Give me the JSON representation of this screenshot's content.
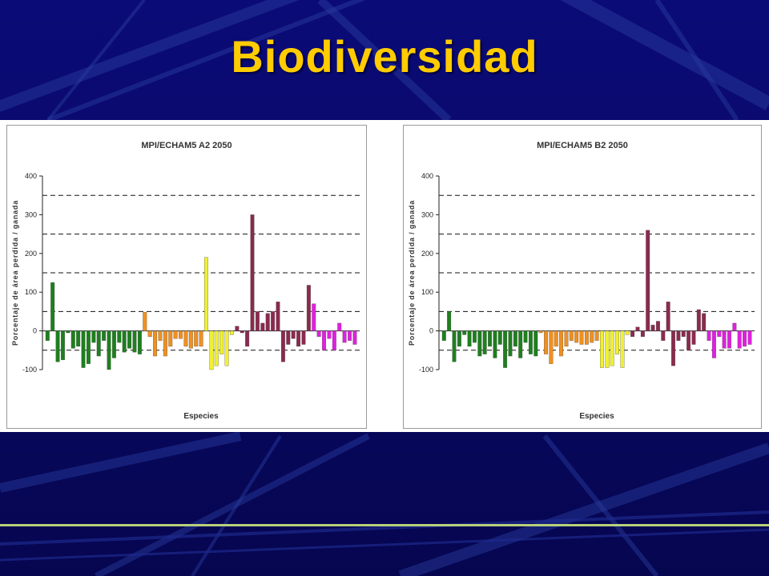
{
  "slide": {
    "title": "Biodiversidad"
  },
  "colors": {
    "background": "#0a0a6e",
    "title": "#ffcc00",
    "rule": "#b8d07a"
  },
  "group_colors": [
    "#1e7f1e",
    "#f09020",
    "#f0f030",
    "#8b2a4e",
    "#e020e0"
  ],
  "chart_data": [
    {
      "type": "bar",
      "title": "MPI/ECHAM5 A2 2050",
      "xlabel": "Especies",
      "ylabel": "Porcentaje de área perdida / ganada",
      "ylim": [
        -100,
        400
      ],
      "yticks": [
        -100,
        0,
        100,
        200,
        300,
        400
      ],
      "reference_lines": [
        -50,
        50,
        150,
        250,
        350
      ],
      "grid": false,
      "legend": "none",
      "values": [
        -25,
        125,
        -80,
        -75,
        -5,
        -45,
        -40,
        -95,
        -85,
        -30,
        -65,
        -25,
        -100,
        -70,
        -30,
        -55,
        -45,
        -55,
        -60,
        48,
        -15,
        -65,
        -25,
        -65,
        -40,
        -20,
        -20,
        -40,
        -45,
        -40,
        -40,
        190,
        -100,
        -90,
        -60,
        -90,
        -10,
        12,
        -5,
        -40,
        300,
        50,
        20,
        45,
        50,
        75,
        -80,
        -35,
        -20,
        -40,
        -35,
        118,
        70,
        -15,
        -50,
        -20,
        -50,
        20,
        -30,
        -25,
        -35
      ],
      "groups": [
        0,
        0,
        0,
        0,
        0,
        0,
        0,
        0,
        0,
        0,
        0,
        0,
        0,
        0,
        0,
        0,
        0,
        0,
        0,
        1,
        1,
        1,
        1,
        1,
        1,
        1,
        1,
        1,
        1,
        1,
        1,
        2,
        2,
        2,
        2,
        2,
        2,
        3,
        3,
        3,
        3,
        3,
        3,
        3,
        3,
        3,
        3,
        3,
        3,
        3,
        3,
        3,
        4,
        4,
        4,
        4,
        4,
        4,
        4,
        4,
        4
      ]
    },
    {
      "type": "bar",
      "title": "MPI/ECHAM5 B2 2050",
      "xlabel": "Especies",
      "ylabel": "Porcentaje de área perdida / ganada",
      "ylim": [
        -100,
        400
      ],
      "yticks": [
        -100,
        0,
        100,
        200,
        300,
        400
      ],
      "reference_lines": [
        -50,
        50,
        150,
        250,
        350
      ],
      "grid": false,
      "legend": "none",
      "values": [
        -25,
        50,
        -80,
        -40,
        -10,
        -40,
        -30,
        -65,
        -60,
        -40,
        -70,
        -35,
        -95,
        -65,
        -40,
        -70,
        -30,
        -60,
        -65,
        -5,
        -60,
        -85,
        -40,
        -65,
        -40,
        -25,
        -30,
        -35,
        -35,
        -30,
        -25,
        -95,
        -95,
        -90,
        -60,
        -95,
        -10,
        -15,
        10,
        -15,
        260,
        15,
        25,
        -25,
        75,
        -90,
        -25,
        -15,
        -50,
        -35,
        55,
        45,
        -25,
        -70,
        -15,
        -45,
        -45,
        20,
        -45,
        -40,
        -35
      ],
      "groups": [
        0,
        0,
        0,
        0,
        0,
        0,
        0,
        0,
        0,
        0,
        0,
        0,
        0,
        0,
        0,
        0,
        0,
        0,
        0,
        1,
        1,
        1,
        1,
        1,
        1,
        1,
        1,
        1,
        1,
        1,
        1,
        2,
        2,
        2,
        2,
        2,
        2,
        3,
        3,
        3,
        3,
        3,
        3,
        3,
        3,
        3,
        3,
        3,
        3,
        3,
        3,
        3,
        4,
        4,
        4,
        4,
        4,
        4,
        4,
        4,
        4
      ]
    }
  ]
}
